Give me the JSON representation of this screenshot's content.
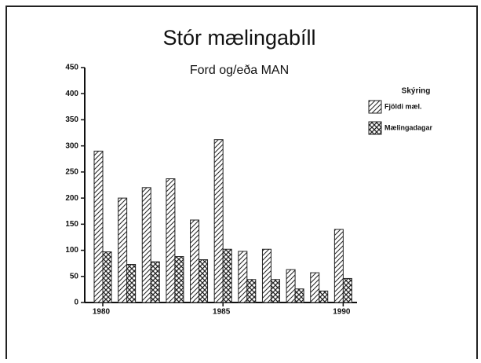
{
  "chart_data": {
    "type": "bar",
    "title": "Stór mælingabíll",
    "subtitle": "Ford og/eða MAN",
    "categories": [
      "1980",
      null,
      null,
      null,
      null,
      "1985",
      null,
      null,
      null,
      null,
      "1990"
    ],
    "series": [
      {
        "name": "Fjöldi mæl.",
        "color": "#222222",
        "pattern": "hatch",
        "values": [
          290,
          200,
          220,
          237,
          158,
          312,
          98,
          102,
          63,
          57,
          140
        ]
      },
      {
        "name": "Mælingadagar",
        "color": "#222222",
        "pattern": "crosshatch",
        "values": [
          97,
          73,
          78,
          88,
          82,
          102,
          44,
          44,
          26,
          22,
          46
        ]
      }
    ],
    "legend_title": "Skýring",
    "ylim": [
      0,
      450
    ],
    "yticks": [
      0,
      50,
      100,
      150,
      200,
      250,
      300,
      350,
      400,
      450
    ],
    "grid": false
  }
}
